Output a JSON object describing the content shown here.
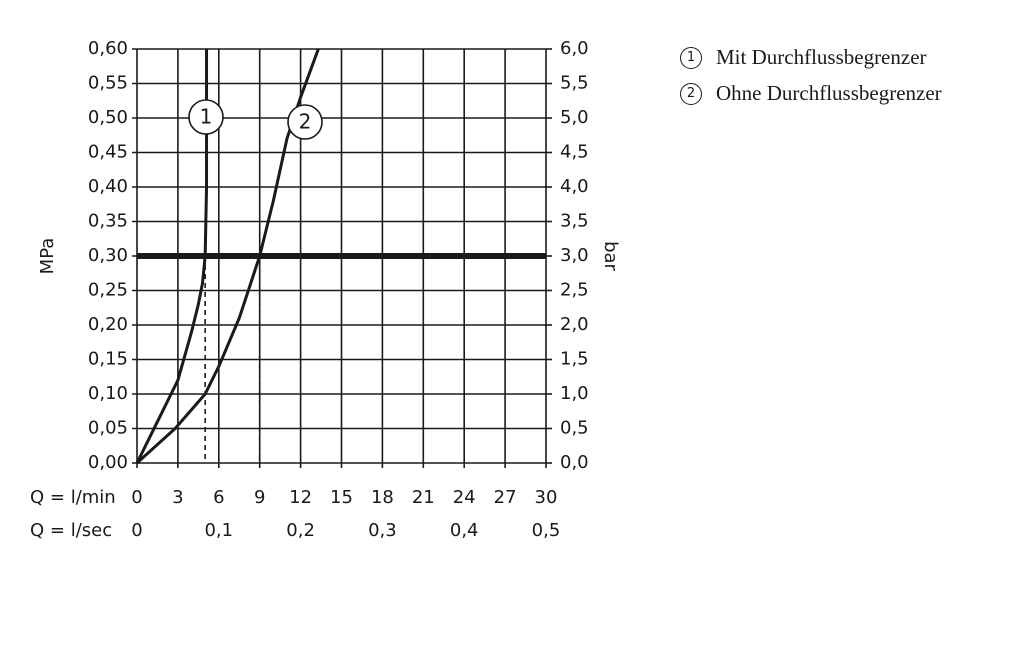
{
  "chart_data": {
    "type": "line",
    "y_label": "MPa",
    "y2_label": "bar",
    "x_label": "Q = l/min",
    "x2_label": "Q = l/sec",
    "xlim": [
      0,
      30
    ],
    "xticks": [
      0,
      3,
      6,
      9,
      12,
      15,
      18,
      21,
      24,
      27,
      30
    ],
    "x2lim": [
      0,
      0.5
    ],
    "x2ticks": [
      0,
      {
        "value": 0.1,
        "label": "0,1"
      },
      {
        "value": 0.2,
        "label": "0,2"
      },
      {
        "value": 0.3,
        "label": "0,3"
      },
      {
        "value": 0.4,
        "label": "0,4"
      },
      {
        "value": 0.5,
        "label": "0,5"
      }
    ],
    "ylim": [
      0,
      0.6
    ],
    "yticks": [
      {
        "value": 0,
        "label": "0,00"
      },
      {
        "value": 0.05,
        "label": "0,05"
      },
      {
        "value": 0.1,
        "label": "0,10"
      },
      {
        "value": 0.15,
        "label": "0,15"
      },
      {
        "value": 0.2,
        "label": "0,20"
      },
      {
        "value": 0.25,
        "label": "0,25"
      },
      {
        "value": 0.3,
        "label": "0,30"
      },
      {
        "value": 0.35,
        "label": "0,35"
      },
      {
        "value": 0.4,
        "label": "0,40"
      },
      {
        "value": 0.45,
        "label": "0,45"
      },
      {
        "value": 0.5,
        "label": "0,50"
      },
      {
        "value": 0.55,
        "label": "0,55"
      },
      {
        "value": 0.6,
        "label": "0,60"
      }
    ],
    "y2lim": [
      0,
      6
    ],
    "y2ticks": [
      {
        "value": 0,
        "label": "0,0"
      },
      {
        "value": 0.5,
        "label": "0,5"
      },
      {
        "value": 1,
        "label": "1,0"
      },
      {
        "value": 1.5,
        "label": "1,5"
      },
      {
        "value": 2,
        "label": "2,0"
      },
      {
        "value": 2.5,
        "label": "2,5"
      },
      {
        "value": 3,
        "label": "3,0"
      },
      {
        "value": 3.5,
        "label": "3,5"
      },
      {
        "value": 4,
        "label": "4,0"
      },
      {
        "value": 4.5,
        "label": "4,5"
      },
      {
        "value": 5,
        "label": "5,0"
      },
      {
        "value": 5.5,
        "label": "5,5"
      },
      {
        "value": 6,
        "label": "6,0"
      }
    ],
    "grid": true,
    "color": "#1a1a1a",
    "reference_y": 0.3,
    "dashed_x": [
      5,
      9
    ],
    "series": [
      {
        "name": "Mit Durchflussbegrenzer",
        "label": "1",
        "x": [
          0,
          1,
          2,
          3,
          4,
          4.5,
          4.8,
          5,
          5.1,
          5.1
        ],
        "values": [
          0,
          0.04,
          0.08,
          0.12,
          0.19,
          0.23,
          0.26,
          0.3,
          0.4,
          0.6
        ]
      },
      {
        "name": "Ohne Durchflussbegrenzer",
        "label": "2",
        "x": [
          0,
          2.8,
          5,
          6,
          7.5,
          9,
          10,
          11,
          12,
          13.3
        ],
        "values": [
          0,
          0.05,
          0.1,
          0.14,
          0.21,
          0.3,
          0.38,
          0.47,
          0.53,
          0.6
        ]
      }
    ]
  }
}
